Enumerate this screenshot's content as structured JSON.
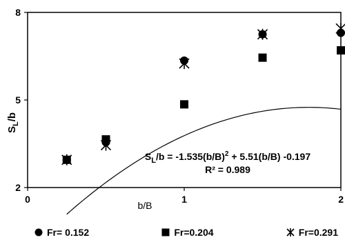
{
  "chart_data": {
    "type": "scatter",
    "xlabel": "b/B",
    "ylabel": "S_L/b",
    "ylabel_main": "S",
    "ylabel_sub": "L",
    "ylabel_rest": "/b",
    "xlim": [
      0,
      2
    ],
    "ylim": [
      2,
      8
    ],
    "xticks": [
      0,
      1,
      2
    ],
    "yticks": [
      2,
      5,
      8
    ],
    "grid": false,
    "legend_position": "bottom",
    "series": [
      {
        "name": "Fr= 0.152",
        "marker": "circle",
        "x": [
          0.25,
          0.5,
          1.0,
          1.5,
          2.0
        ],
        "y": [
          2.95,
          3.55,
          6.35,
          7.25,
          7.3
        ]
      },
      {
        "name": "Fr=0.204",
        "marker": "square",
        "x": [
          0.25,
          0.5,
          1.0,
          1.5,
          2.0
        ],
        "y": [
          2.95,
          3.65,
          4.85,
          6.45,
          6.7
        ]
      },
      {
        "name": "Fr=0.291",
        "marker": "star",
        "x": [
          0.25,
          0.5,
          1.0,
          1.5,
          2.0
        ],
        "y": [
          2.95,
          3.45,
          6.25,
          7.25,
          7.45
        ]
      }
    ],
    "trendline": {
      "coefficients": {
        "a": -1.535,
        "b": 5.51,
        "c": -0.197
      },
      "x_range": [
        0.25,
        2.0
      ]
    },
    "annotation": {
      "eq_main": "S",
      "eq_sub": "L",
      "eq_mid": "/b = -1.535(b/B)",
      "eq_sup": "2",
      "eq_tail": " + 5.51(b/B) -0.197",
      "r2": "R² = 0.989"
    }
  }
}
